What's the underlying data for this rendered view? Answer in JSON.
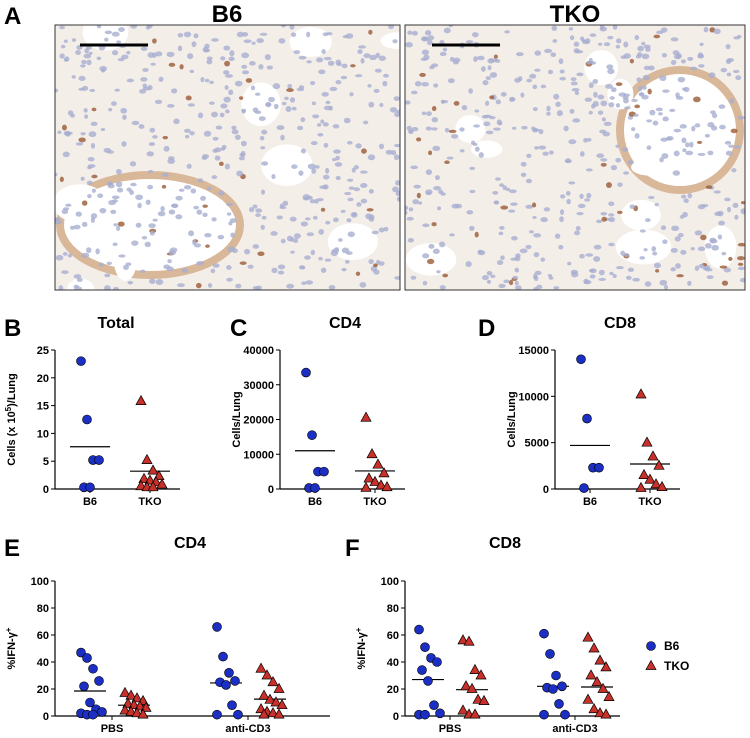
{
  "panel_a": {
    "label": "A",
    "images": [
      {
        "title": "B6"
      },
      {
        "title": "TKO"
      }
    ]
  },
  "chart_data": [
    {
      "type": "dotplot",
      "label": "B",
      "title": "Total",
      "ylabel": [
        "Cells (x 10",
        "5",
        ")/Lung"
      ],
      "ylim": [
        0,
        25
      ],
      "yticks": [
        0,
        5,
        10,
        15,
        20,
        25
      ],
      "categories": [
        "B6",
        "TKO"
      ],
      "groups": [
        {
          "color": "#1c2fc4",
          "marker": "circle",
          "values": [
            23,
            12.5,
            5.2,
            5.2,
            0.3,
            0.3
          ],
          "mean": 7.6
        },
        {
          "color": "#c8302a",
          "marker": "triangle",
          "values": [
            15.8,
            5.2,
            3.3,
            2.3,
            1.8,
            1.5,
            1.2,
            0.8,
            0.5,
            0.3,
            0.3
          ],
          "mean": 3.2
        }
      ]
    },
    {
      "type": "dotplot",
      "label": "C",
      "title": "CD4",
      "ylabel": "Cells/Lung",
      "ylim": [
        0,
        40000
      ],
      "yticks": [
        0,
        10000,
        20000,
        30000,
        40000
      ],
      "categories": [
        "B6",
        "TKO"
      ],
      "groups": [
        {
          "color": "#1c2fc4",
          "marker": "circle",
          "values": [
            33500,
            15500,
            5000,
            5000,
            300,
            300
          ],
          "mean": 11000
        },
        {
          "color": "#c8302a",
          "marker": "triangle",
          "values": [
            20500,
            10000,
            7000,
            4500,
            3000,
            2000,
            1000,
            500,
            300
          ],
          "mean": 5200
        }
      ]
    },
    {
      "type": "dotplot",
      "label": "D",
      "title": "CD8",
      "ylabel": "Cells/Lung",
      "ylim": [
        0,
        15000
      ],
      "yticks": [
        0,
        5000,
        10000,
        15000
      ],
      "categories": [
        "B6",
        "TKO"
      ],
      "groups": [
        {
          "color": "#1c2fc4",
          "marker": "circle",
          "values": [
            14000,
            7600,
            2300,
            2300,
            100
          ],
          "mean": 4700
        },
        {
          "color": "#c8302a",
          "marker": "triangle",
          "values": [
            10200,
            5000,
            3500,
            2500,
            1500,
            1000,
            500,
            200,
            100
          ],
          "mean": 2700
        }
      ]
    },
    {
      "type": "grouped_dotplot",
      "label": "E",
      "title": "CD4",
      "ylabel": [
        "%IFN-γ",
        "+"
      ],
      "ylim": [
        0,
        100
      ],
      "yticks": [
        0,
        20,
        40,
        60,
        80,
        100
      ],
      "categories": [
        "PBS",
        "anti-CD3"
      ],
      "series": [
        {
          "color": "#1c2fc4",
          "marker": "circle",
          "values": [
            [
              47,
              43,
              35,
              26,
              22,
              10,
              5,
              3,
              2,
              1,
              1
            ],
            [
              66,
              44,
              32,
              26,
              25,
              23,
              8,
              1,
              1
            ]
          ],
          "means": [
            18.5,
            24.5
          ]
        },
        {
          "color": "#c8302a",
          "marker": "triangle",
          "values": [
            [
              17,
              15,
              13,
              11,
              9,
              8,
              7,
              6,
              4,
              3,
              2,
              1
            ],
            [
              35,
              30,
              25,
              20,
              15,
              12,
              10,
              8,
              5,
              3,
              2,
              1,
              1
            ]
          ],
          "means": [
            8,
            12.5
          ]
        }
      ]
    },
    {
      "type": "grouped_dotplot",
      "label": "F",
      "title": "CD8",
      "ylabel": [
        "%IFN-γ",
        "+"
      ],
      "ylim": [
        0,
        100
      ],
      "yticks": [
        0,
        20,
        40,
        60,
        80,
        100
      ],
      "categories": [
        "PBS",
        "anti-CD3"
      ],
      "series": [
        {
          "color": "#1c2fc4",
          "marker": "circle",
          "values": [
            [
              64,
              51,
              43,
              40,
              34,
              26,
              8,
              2,
              1,
              1
            ],
            [
              61,
              46,
              30,
              22,
              21,
              20,
              9,
              1,
              1
            ]
          ],
          "means": [
            27,
            22
          ]
        },
        {
          "color": "#c8302a",
          "marker": "triangle",
          "values": [
            [
              56,
              55,
              34,
              30,
              22,
              20,
              12,
              11,
              4,
              1,
              1
            ],
            [
              58,
              50,
              41,
              36,
              30,
              25,
              20,
              14,
              12,
              5,
              2,
              1
            ]
          ],
          "means": [
            19.5,
            21.5
          ]
        }
      ]
    }
  ],
  "legend": [
    {
      "name": "B6",
      "color": "#1c2fc4",
      "marker": "circle"
    },
    {
      "name": "TKO",
      "color": "#c8302a",
      "marker": "triangle"
    }
  ]
}
